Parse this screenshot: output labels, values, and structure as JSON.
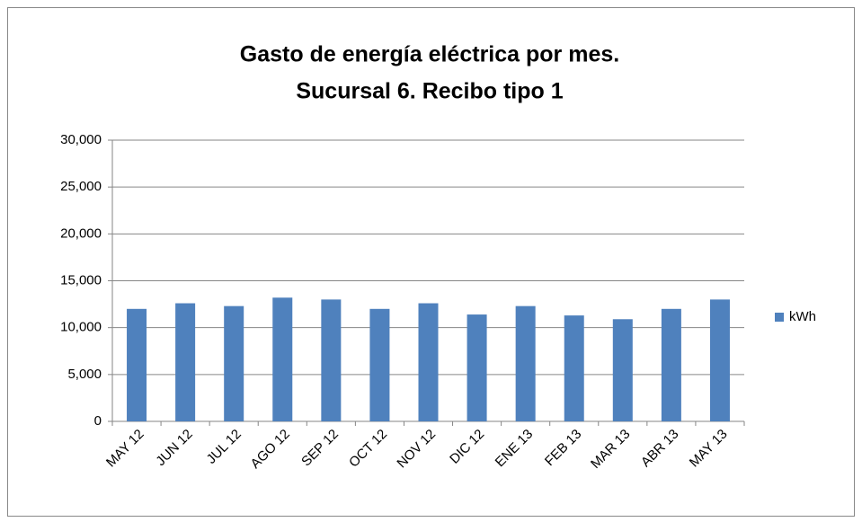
{
  "chart_data": {
    "type": "bar",
    "title": "Gasto de energía eléctrica por mes.",
    "subtitle": "Sucursal 6. Recibo tipo 1",
    "categories": [
      "MAY 12",
      "JUN 12",
      "JUL 12",
      "AGO 12",
      "SEP 12",
      "OCT 12",
      "NOV 12",
      "DIC 12",
      "ENE 13",
      "FEB 13",
      "MAR 13",
      "ABR 13",
      "MAY 13"
    ],
    "series": [
      {
        "name": "kWh",
        "color": "#4f81bd",
        "values": [
          12000,
          12600,
          12300,
          13200,
          13000,
          12000,
          12600,
          11400,
          12300,
          11300,
          10900,
          12000,
          13000
        ]
      }
    ],
    "ylim": [
      0,
      30000
    ],
    "yticks": [
      0,
      {
        "value": 5000,
        "label": "5,000"
      },
      {
        "value": 10000,
        "label": "10,000"
      },
      {
        "value": 15000,
        "label": "15,000"
      },
      {
        "value": 20000,
        "label": "20,000"
      },
      {
        "value": 25000,
        "label": "25,000"
      },
      {
        "value": 30000,
        "label": "30,000"
      }
    ],
    "grid": true,
    "legend": "right"
  }
}
